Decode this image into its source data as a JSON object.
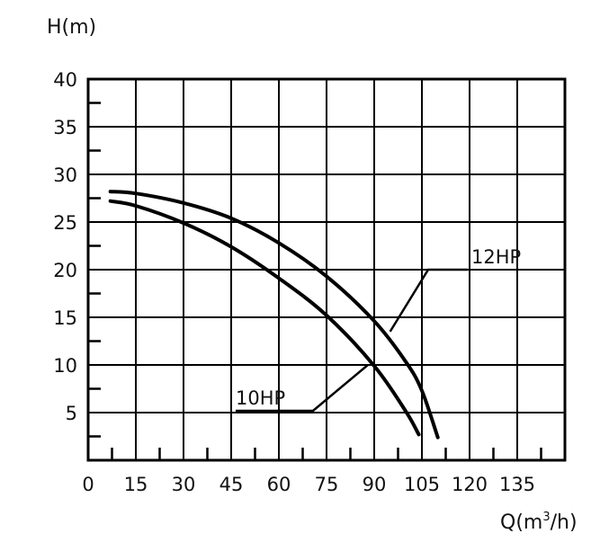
{
  "chart_data": {
    "type": "line",
    "title": "",
    "xlabel": "Q(m",
    "xlabel_sup": "3",
    "xlabel_tail": "/h)",
    "ylabel": "H(m)",
    "xlim": [
      0,
      150
    ],
    "ylim": [
      0,
      40
    ],
    "x_grid_step": 15,
    "y_grid_step": 5,
    "x_ticks": [
      0,
      15,
      30,
      45,
      60,
      75,
      90,
      105,
      120,
      135
    ],
    "x_tick_labels": [
      "0",
      "15",
      "30",
      "45",
      "60",
      "75",
      "90",
      "105",
      "120",
      "135"
    ],
    "y_ticks": [
      5,
      10,
      15,
      20,
      25,
      30,
      35,
      40
    ],
    "y_tick_labels": [
      "5",
      "10",
      "15",
      "20",
      "25",
      "30",
      "35",
      "40"
    ],
    "grid": true,
    "series": [
      {
        "name": "12HP",
        "x": [
          7,
          15,
          30,
          45,
          60,
          75,
          90,
          100,
          105,
          110
        ],
        "y": [
          28.2,
          28,
          27,
          25.4,
          22.8,
          19.3,
          14.6,
          10.3,
          7.3,
          2.4
        ]
      },
      {
        "name": "10HP",
        "x": [
          7,
          15,
          30,
          45,
          60,
          75,
          90,
          100,
          104
        ],
        "y": [
          27.2,
          26.7,
          24.9,
          22.4,
          19.1,
          15.2,
          9.9,
          5.1,
          2.7
        ]
      }
    ],
    "annotations": [
      {
        "text": "12HP",
        "points_to": [
          95,
          13.5
        ]
      },
      {
        "text": "10HP",
        "points_to": [
          88,
          10
        ]
      }
    ]
  }
}
